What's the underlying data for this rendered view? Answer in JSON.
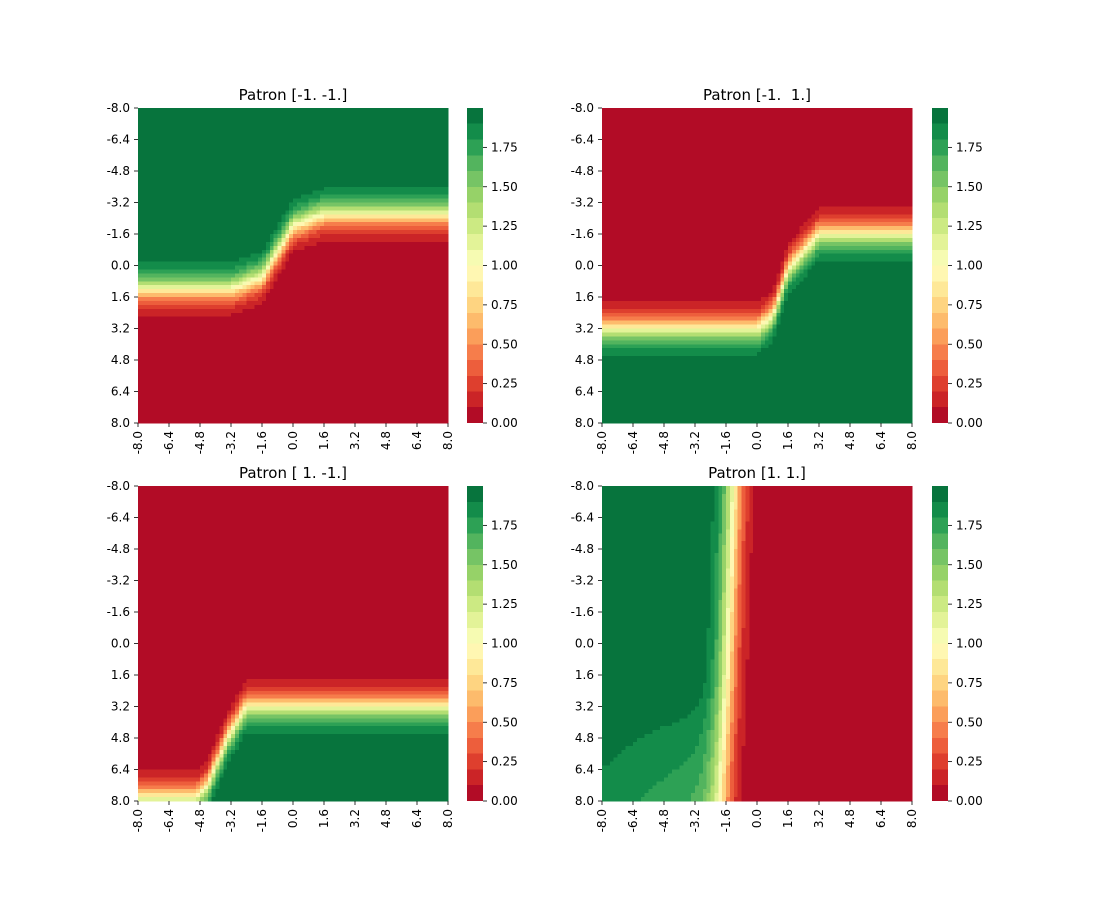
{
  "chart_data": [
    {
      "type": "heatmap",
      "title": "Patron [-1. -1.]",
      "xticklabels": [
        "-8.0",
        "-6.4",
        "-4.8",
        "-3.2",
        "-1.6",
        "0.0",
        "1.6",
        "3.2",
        "4.8",
        "6.4",
        "8.0"
      ],
      "yticklabels": [
        "-8.0",
        "-6.4",
        "-4.8",
        "-3.2",
        "-1.6",
        "0.0",
        "1.6",
        "3.2",
        "4.8",
        "6.4",
        "8.0"
      ],
      "xlim": [
        -8,
        8
      ],
      "ylim": [
        -8,
        8
      ],
      "y_axis_inverted": true,
      "colorbar_ticks": [
        "0.00",
        "0.25",
        "0.50",
        "0.75",
        "1.00",
        "1.25",
        "1.50",
        "1.75"
      ],
      "vmin": 0,
      "vmax": 2,
      "cmap": "RdYlGn",
      "levels": 20,
      "boundary": {
        "x": [
          -8,
          -3.2,
          -1.6,
          0,
          1.6,
          8
        ],
        "y": [
          1.2,
          1.2,
          0.6,
          -2.0,
          -2.6,
          -2.6
        ]
      },
      "above_value": 2,
      "below_value": 0,
      "band_width": 0.45
    },
    {
      "type": "heatmap",
      "title": "Patron [-1.  1.]",
      "xticklabels": [
        "-8.0",
        "-6.4",
        "-4.8",
        "-3.2",
        "-1.6",
        "0.0",
        "1.6",
        "3.2",
        "4.8",
        "6.4",
        "8.0"
      ],
      "yticklabels": [
        "-8.0",
        "-6.4",
        "-4.8",
        "-3.2",
        "-1.6",
        "0.0",
        "1.6",
        "3.2",
        "4.8",
        "6.4",
        "8.0"
      ],
      "xlim": [
        -8,
        8
      ],
      "ylim": [
        -8,
        8
      ],
      "y_axis_inverted": true,
      "colorbar_ticks": [
        "0.00",
        "0.25",
        "0.50",
        "0.75",
        "1.00",
        "1.25",
        "1.50",
        "1.75"
      ],
      "vmin": 0,
      "vmax": 2,
      "cmap": "RdYlGn",
      "levels": 20,
      "boundary": {
        "x": [
          -8,
          0,
          0.8,
          1.6,
          3.2,
          8
        ],
        "y": [
          3.2,
          3.2,
          2.6,
          0.2,
          -1.6,
          -1.6
        ]
      },
      "above_value": 0,
      "below_value": 2,
      "band_width": 0.45
    },
    {
      "type": "heatmap",
      "title": "Patron [ 1. -1.]",
      "xticklabels": [
        "-8.0",
        "-6.4",
        "-4.8",
        "-3.2",
        "-1.6",
        "0.0",
        "1.6",
        "3.2",
        "4.8",
        "6.4",
        "8.0"
      ],
      "yticklabels": [
        "-8.0",
        "-6.4",
        "-4.8",
        "-3.2",
        "-1.6",
        "0.0",
        "1.6",
        "3.2",
        "4.8",
        "6.4",
        "8.0"
      ],
      "xlim": [
        -8,
        8
      ],
      "ylim": [
        -8,
        8
      ],
      "y_axis_inverted": true,
      "colorbar_ticks": [
        "0.00",
        "0.25",
        "0.50",
        "0.75",
        "1.00",
        "1.25",
        "1.50",
        "1.75"
      ],
      "vmin": 0,
      "vmax": 2,
      "cmap": "RdYlGn",
      "levels": 20,
      "boundary": {
        "x": [
          -8,
          -5.0,
          -4.4,
          -3.4,
          -2.4,
          8
        ],
        "y": [
          7.8,
          7.8,
          7.2,
          4.8,
          3.2,
          3.2
        ]
      },
      "above_value": 0,
      "below_value": 2,
      "band_width": 0.45
    },
    {
      "type": "heatmap",
      "title": "Patron [1. 1.]",
      "xticklabels": [
        "-8.0",
        "-6.4",
        "-4.8",
        "-3.2",
        "-1.6",
        "0.0",
        "1.6",
        "3.2",
        "4.8",
        "6.4",
        "8.0"
      ],
      "yticklabels": [
        "-8.0",
        "-6.4",
        "-4.8",
        "-3.2",
        "-1.6",
        "0.0",
        "1.6",
        "3.2",
        "4.8",
        "6.4",
        "8.0"
      ],
      "xlim": [
        -8,
        8
      ],
      "ylim": [
        -8,
        8
      ],
      "y_axis_inverted": true,
      "colorbar_ticks": [
        "0.00",
        "0.25",
        "0.50",
        "0.75",
        "1.00",
        "1.25",
        "1.50",
        "1.75"
      ],
      "vmin": 0,
      "vmax": 2,
      "cmap": "RdYlGn",
      "levels": 20,
      "vertical_boundary": {
        "y": [
          -8,
          8
        ],
        "x": [
          -1.2,
          -1.8
        ]
      },
      "left_value": 2,
      "right_value": 0,
      "band_width": 0.35,
      "left_gradient": {
        "y_start": 1.6,
        "min_value": 1.65
      }
    }
  ]
}
